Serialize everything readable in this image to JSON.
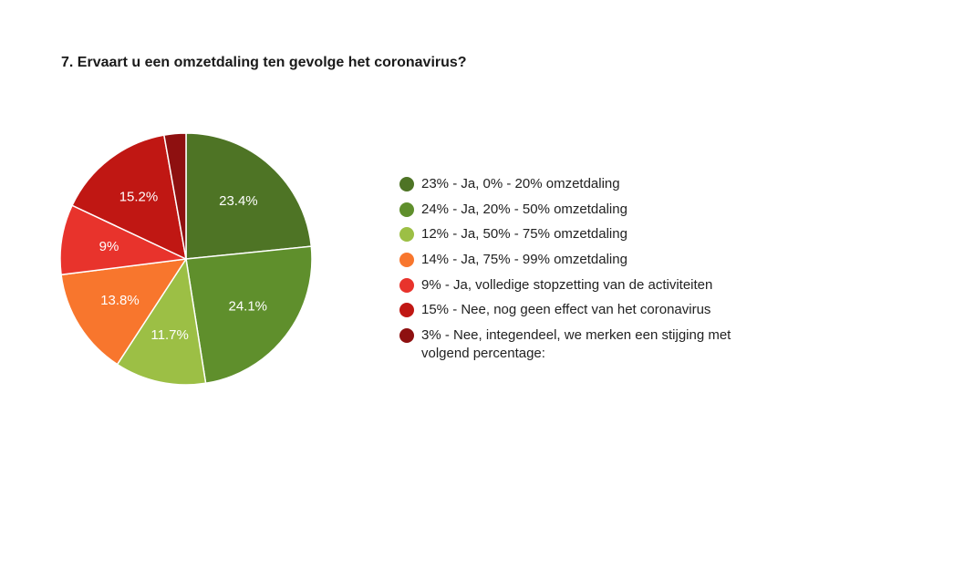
{
  "chart_data": {
    "type": "pie",
    "title": "7. Ervaart u een omzetdaling ten gevolge het coronavirus?",
    "slices": [
      {
        "legend": "23% - Ja, 0% - 20% omzetdaling",
        "value": 23.4,
        "label": "23.4%",
        "color": "#4e7425"
      },
      {
        "legend": "24% - Ja, 20% - 50% omzetdaling",
        "value": 24.1,
        "label": "24.1%",
        "color": "#5f8f2c"
      },
      {
        "legend": "12% - Ja, 50% - 75% omzetdaling",
        "value": 11.7,
        "label": "11.7%",
        "color": "#9cbf45"
      },
      {
        "legend": "14% - Ja, 75% - 99% omzetdaling",
        "value": 13.8,
        "label": "13.8%",
        "color": "#f8762d"
      },
      {
        "legend": "9% - Ja, volledige stopzetting van de activiteiten",
        "value": 9.0,
        "label": "9%",
        "color": "#e8332c"
      },
      {
        "legend": "15% - Nee, nog geen effect van het coronavirus",
        "value": 15.2,
        "label": "15.2%",
        "color": "#c01713"
      },
      {
        "legend": "3% - Nee, integendeel, we merken een stijging met volgend percentage:",
        "value": 2.8,
        "label": "",
        "color": "#8e1010"
      }
    ],
    "legend_position": "right"
  }
}
